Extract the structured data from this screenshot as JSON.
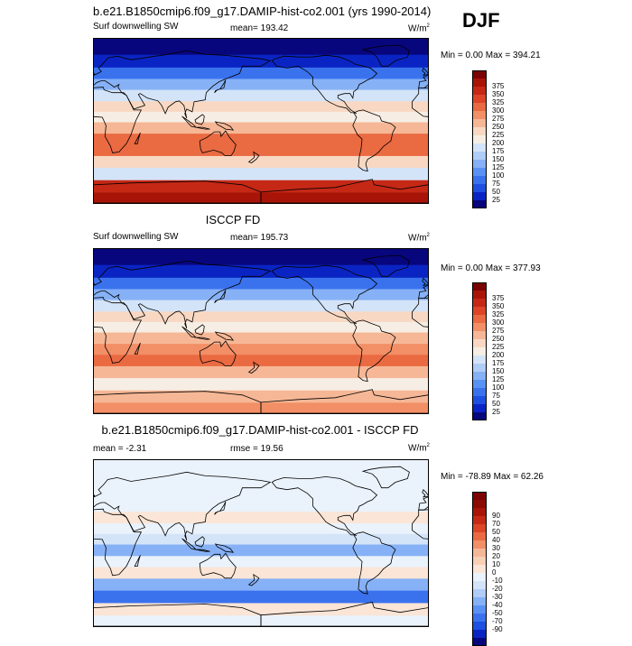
{
  "season": "DJF",
  "colors": {
    "diverging_17": [
      "#08067d",
      "#0a24c4",
      "#1f4fe0",
      "#3a72ee",
      "#5a92f4",
      "#86b1f6",
      "#b0cdf7",
      "#d4e4f8",
      "#f6eee4",
      "#f8d8c2",
      "#f6b796",
      "#f28f66",
      "#ea6a42",
      "#dc4528",
      "#c62816",
      "#a81508",
      "#7a0303"
    ],
    "diff_19": [
      "#08067d",
      "#0a24c4",
      "#1f4fe0",
      "#3a72ee",
      "#5a92f4",
      "#86b1f6",
      "#b0cdf7",
      "#d4e4f8",
      "#eaf2fb",
      "#fbe5d6",
      "#f8d0b6",
      "#f6b796",
      "#f28f66",
      "#ea6a42",
      "#dc4528",
      "#c62816",
      "#a81508",
      "#8c0a04",
      "#7a0303"
    ],
    "coast": "#000000"
  },
  "panels": [
    {
      "id": "model",
      "title": "b.e21.B1850cmip6.f09_g17.DAMIP-hist-co2.001 (yrs 1990-2014)",
      "left_label": "Surf downwelling SW",
      "center_label": "mean= 193.42",
      "units_base": "W/m",
      "units_exp": "2",
      "stats": "Min =   0.00 Max = 394.21",
      "colorbar_labels": [
        "375",
        "350",
        "325",
        "300",
        "275",
        "250",
        "225",
        "200",
        "175",
        "150",
        "125",
        "100",
        "75",
        "50",
        "25"
      ]
    },
    {
      "id": "obs",
      "title": "ISCCP FD",
      "left_label": "Surf downwelling SW",
      "center_label": "mean= 195.73",
      "units_base": "W/m",
      "units_exp": "2",
      "stats": "Min =   0.00 Max = 377.93",
      "colorbar_labels": [
        "375",
        "350",
        "325",
        "300",
        "275",
        "250",
        "225",
        "200",
        "175",
        "150",
        "125",
        "100",
        "75",
        "50",
        "25"
      ]
    },
    {
      "id": "diff",
      "title": "b.e21.B1850cmip6.f09_g17.DAMIP-hist-co2.001 - ISCCP FD",
      "left_label": "mean =  -2.31",
      "center_label": "rmse =  19.56",
      "units_base": "W/m",
      "units_exp": "2",
      "stats": "Min = -78.89 Max =  62.26",
      "colorbar_labels": [
        "90",
        "70",
        "50",
        "40",
        "30",
        "20",
        "10",
        "0",
        "-10",
        "-20",
        "-30",
        "-40",
        "-50",
        "-70",
        "-90"
      ]
    }
  ],
  "chart_data": [
    {
      "type": "heatmap",
      "title": "b.e21.B1850cmip6.f09_g17.DAMIP-hist-co2.001 (yrs 1990-2014)",
      "variable": "Surf downwelling SW",
      "units": "W/m2",
      "season": "DJF",
      "mean": 193.42,
      "min": 0.0,
      "max": 394.21,
      "colorbar_levels": [
        25,
        50,
        75,
        100,
        125,
        150,
        175,
        200,
        225,
        250,
        275,
        300,
        325,
        350,
        375
      ],
      "zonal_bands": [
        {
          "lat": 80,
          "value": 10
        },
        {
          "lat": 65,
          "value": 40
        },
        {
          "lat": 52,
          "value": 85
        },
        {
          "lat": 40,
          "value": 140
        },
        {
          "lat": 28,
          "value": 185
        },
        {
          "lat": 15,
          "value": 235
        },
        {
          "lat": 5,
          "value": 220
        },
        {
          "lat": -8,
          "value": 265
        },
        {
          "lat": -20,
          "value": 300
        },
        {
          "lat": -32,
          "value": 305
        },
        {
          "lat": -45,
          "value": 225
        },
        {
          "lat": -58,
          "value": 190
        },
        {
          "lat": -72,
          "value": 365
        },
        {
          "lat": -85,
          "value": 385
        }
      ]
    },
    {
      "type": "heatmap",
      "title": "ISCCP FD",
      "variable": "Surf downwelling SW",
      "units": "W/m2",
      "season": "DJF",
      "mean": 195.73,
      "min": 0.0,
      "max": 377.93,
      "colorbar_levels": [
        25,
        50,
        75,
        100,
        125,
        150,
        175,
        200,
        225,
        250,
        275,
        300,
        325,
        350,
        375
      ],
      "zonal_bands": [
        {
          "lat": 80,
          "value": 10
        },
        {
          "lat": 65,
          "value": 35
        },
        {
          "lat": 52,
          "value": 80
        },
        {
          "lat": 40,
          "value": 145
        },
        {
          "lat": 28,
          "value": 195
        },
        {
          "lat": 15,
          "value": 245
        },
        {
          "lat": 5,
          "value": 215
        },
        {
          "lat": -8,
          "value": 250
        },
        {
          "lat": -20,
          "value": 285
        },
        {
          "lat": -32,
          "value": 300
        },
        {
          "lat": -45,
          "value": 250
        },
        {
          "lat": -58,
          "value": 205
        },
        {
          "lat": -72,
          "value": 260
        },
        {
          "lat": -85,
          "value": 285
        }
      ]
    },
    {
      "type": "heatmap",
      "title": "b.e21.B1850cmip6.f09_g17.DAMIP-hist-co2.001 - ISCCP FD",
      "variable": "Surf downwelling SW difference",
      "units": "W/m2",
      "season": "DJF",
      "mean": -2.31,
      "rmse": 19.56,
      "min": -78.89,
      "max": 62.26,
      "colorbar_levels": [
        -90,
        -70,
        -50,
        -40,
        -30,
        -20,
        -10,
        0,
        10,
        20,
        30,
        40,
        50,
        70,
        90
      ],
      "zonal_bands": [
        {
          "lat": 80,
          "value": 0
        },
        {
          "lat": 65,
          "value": 5
        },
        {
          "lat": 52,
          "value": 5
        },
        {
          "lat": 40,
          "value": 5
        },
        {
          "lat": 28,
          "value": 15
        },
        {
          "lat": 15,
          "value": 5
        },
        {
          "lat": 5,
          "value": -10
        },
        {
          "lat": -8,
          "value": -25
        },
        {
          "lat": -20,
          "value": 5
        },
        {
          "lat": -32,
          "value": 10
        },
        {
          "lat": -45,
          "value": -25
        },
        {
          "lat": -58,
          "value": -45
        },
        {
          "lat": -72,
          "value": 15
        },
        {
          "lat": -85,
          "value": 0
        }
      ]
    }
  ]
}
